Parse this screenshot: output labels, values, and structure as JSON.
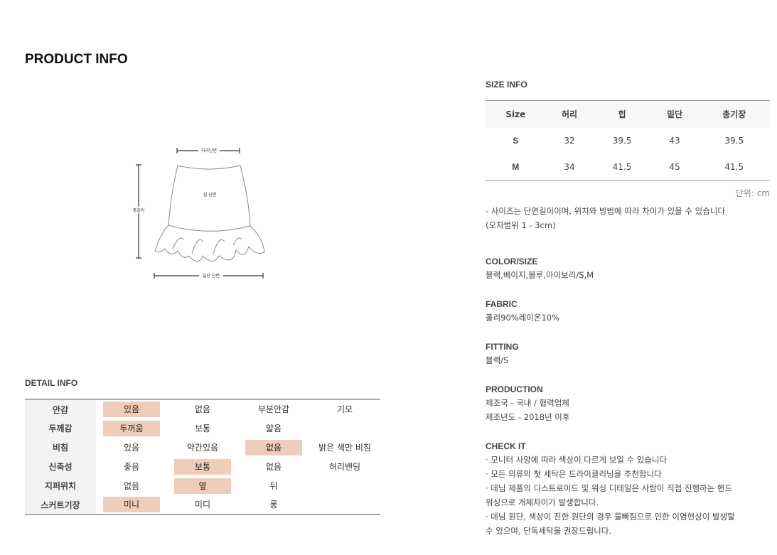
{
  "title": "PRODUCT INFO",
  "diagram": {
    "waist": "허리단면",
    "hip": "힙 단면",
    "length": "총길이",
    "hem": "밑단 단면"
  },
  "detail": {
    "title": "DETAIL INFO",
    "highlight_color": "#f0cdb8",
    "rows": [
      {
        "label": "안감",
        "options": [
          "있음",
          "없음",
          "부분안감",
          "기모"
        ],
        "selected": 0
      },
      {
        "label": "두께감",
        "options": [
          "두꺼움",
          "보통",
          "얇음",
          ""
        ],
        "selected": 0
      },
      {
        "label": "비침",
        "options": [
          "있음",
          "약간있음",
          "없음",
          "밝은 색만 비침"
        ],
        "selected": 2
      },
      {
        "label": "신축성",
        "options": [
          "좋음",
          "보통",
          "없음",
          "허리밴딩"
        ],
        "selected": 1
      },
      {
        "label": "지퍼위치",
        "options": [
          "없음",
          "옆",
          "뒤",
          ""
        ],
        "selected": 1
      },
      {
        "label": "스커트기장",
        "options": [
          "미니",
          "미디",
          "롱",
          ""
        ],
        "selected": 0
      }
    ]
  },
  "size": {
    "title": "SIZE INFO",
    "headers": [
      "Size",
      "허리",
      "힙",
      "밑단",
      "총기장"
    ],
    "rows": [
      [
        "S",
        "32",
        "39.5",
        "43",
        "39.5"
      ],
      [
        "M",
        "34",
        "41.5",
        "45",
        "41.5"
      ]
    ],
    "unit": "단위: cm",
    "notes": [
      "- 사이즈는 단면길이이며, 위치와 방법에 따라 차이가 있을 수 있습니다",
      "(오차범위 1 - 3cm)"
    ]
  },
  "color_size": {
    "title": "COLOR/SIZE",
    "value": "블랙,베이지,블루,아이보리/S,M"
  },
  "fabric": {
    "title": "FABRIC",
    "value": "폴리90%레이온10%"
  },
  "fitting": {
    "title": "FITTING",
    "value": "블랙/S"
  },
  "production": {
    "title": "PRODUCTION",
    "lines": [
      "제조국 - 국내 / 협력업체",
      "제조년도 - 2018년 이후"
    ]
  },
  "check": {
    "title": "CHECK IT",
    "lines": [
      "· 모니터 사양에 따라 색상이 다르게 보일 수 있습니다",
      "· 모든 의류의 첫 세탁은 드라이클리닝을 추천합니다",
      "· 데님 제품의 디스트로이드 및 워싱 디테일은 사람이 직접 진행하는 핸드",
      "워싱으로 개체차이가 발생합니다.",
      "· 데님 원단, 색상이 진한 원단의 경우 물빠짐으로 인한 이염현상이 발생할",
      "수 있으며, 단독세탁을 권장드립니다."
    ]
  }
}
